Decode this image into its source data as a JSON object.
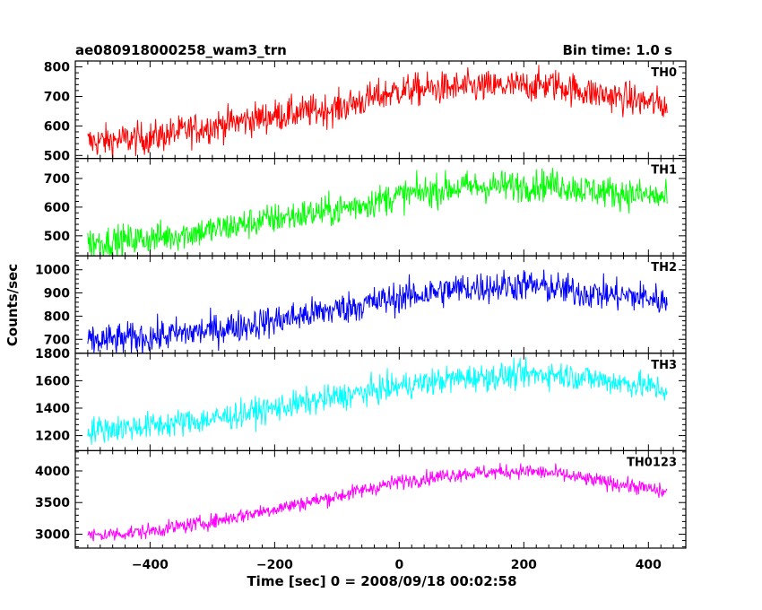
{
  "header": {
    "source_name": "ae080918000258_wam3_trn",
    "bin_time": "Bin time: 1.0 s"
  },
  "chart_data": {
    "type": "line",
    "title": "ae080918000258_wam3_trn",
    "subtitle": "Bin time: 1.0 s",
    "xlabel": "Time [sec] 0 = 2008/09/18 00:02:58",
    "ylabel": "Counts/sec",
    "xlim": [
      -520,
      460
    ],
    "xticks": [
      -400,
      -200,
      0,
      200,
      400
    ],
    "xtick_labels": [
      "−400",
      "−200",
      "0",
      "200",
      "400"
    ],
    "x_range": [
      -500,
      430
    ],
    "bin_time_sec": 1.0,
    "series": [
      {
        "name": "TH0",
        "color": "#ff0000",
        "ylim": [
          490,
          820
        ],
        "yticks": [
          500,
          600,
          700,
          800
        ],
        "x": [
          -500,
          -400,
          -300,
          -200,
          -100,
          0,
          100,
          200,
          250,
          300,
          400,
          430
        ],
        "values": [
          545,
          560,
          600,
          635,
          660,
          720,
          730,
          735,
          740,
          715,
          680,
          670
        ],
        "noise": 28
      },
      {
        "name": "TH1",
        "color": "#00ff00",
        "ylim": [
          430,
          770
        ],
        "yticks": [
          500,
          600,
          700
        ],
        "x": [
          -500,
          -400,
          -300,
          -200,
          -100,
          0,
          100,
          200,
          250,
          300,
          400,
          430
        ],
        "values": [
          475,
          490,
          520,
          560,
          590,
          640,
          670,
          675,
          680,
          660,
          640,
          630
        ],
        "noise": 28
      },
      {
        "name": "TH2",
        "color": "#0000ff",
        "ylim": [
          640,
          1060
        ],
        "yticks": [
          700,
          800,
          900,
          1000
        ],
        "x": [
          -500,
          -400,
          -300,
          -200,
          -100,
          0,
          100,
          200,
          250,
          300,
          400,
          430
        ],
        "values": [
          690,
          710,
          740,
          780,
          830,
          880,
          920,
          935,
          920,
          900,
          880,
          860
        ],
        "noise": 35
      },
      {
        "name": "TH3",
        "color": "#00ffff",
        "ylim": [
          1090,
          1800
        ],
        "yticks": [
          1200,
          1400,
          1600,
          1800
        ],
        "x": [
          -500,
          -400,
          -300,
          -200,
          -100,
          0,
          100,
          200,
          250,
          300,
          400,
          430
        ],
        "values": [
          1240,
          1270,
          1320,
          1400,
          1480,
          1560,
          1620,
          1640,
          1650,
          1620,
          1560,
          1530
        ],
        "noise": 50
      },
      {
        "name": "TH0123",
        "color": "#ff00ff",
        "ylim": [
          2780,
          4320
        ],
        "yticks": [
          3000,
          3500,
          4000
        ],
        "x": [
          -500,
          -400,
          -300,
          -200,
          -100,
          0,
          100,
          200,
          250,
          300,
          400,
          430
        ],
        "values": [
          2970,
          3050,
          3200,
          3400,
          3600,
          3830,
          3960,
          4000,
          3960,
          3870,
          3720,
          3650
        ],
        "noise": 60
      }
    ]
  }
}
